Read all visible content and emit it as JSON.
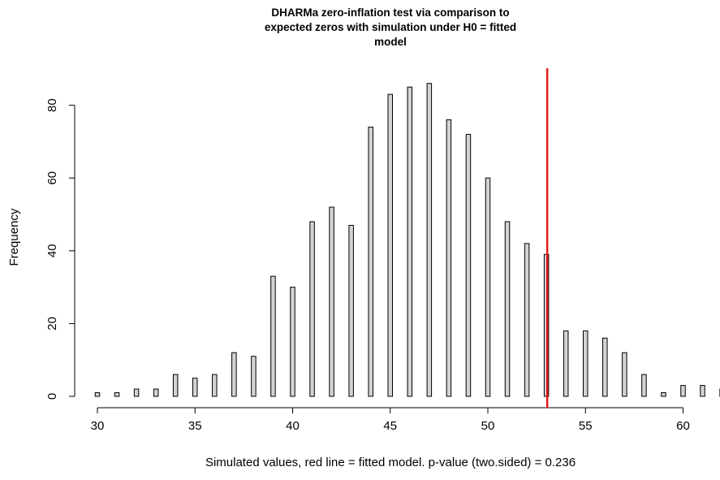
{
  "chart_data": {
    "type": "bar",
    "title_lines": [
      "DHARMa zero-inflation test via comparison to",
      "expected zeros with simulation under H0 = fitted",
      "model"
    ],
    "xlabel": "Simulated values, red line = fitted model. p-value (two.sided) = 0.236",
    "ylabel": "Frequency",
    "xlim": [
      30,
      62
    ],
    "ylim": [
      0,
      90
    ],
    "x_ticks": [
      "30",
      "35",
      "40",
      "45",
      "50",
      "55",
      "60"
    ],
    "y_ticks": [
      "0",
      "20",
      "40",
      "60",
      "80"
    ],
    "x": [
      30,
      31,
      32,
      33,
      34,
      35,
      36,
      37,
      38,
      39,
      40,
      41,
      42,
      43,
      44,
      45,
      46,
      47,
      48,
      49,
      50,
      51,
      52,
      53,
      54,
      55,
      56,
      57,
      58,
      59,
      60,
      61,
      62
    ],
    "values": [
      1,
      1,
      2,
      2,
      6,
      5,
      6,
      12,
      11,
      33,
      30,
      48,
      52,
      47,
      74,
      83,
      85,
      86,
      76,
      72,
      60,
      48,
      42,
      39,
      18,
      18,
      16,
      12,
      6,
      1,
      3,
      3,
      2
    ],
    "observed_value": 53,
    "bar_fill": "#d3d3d3",
    "bar_stroke": "#000000",
    "observed_line_color": "#e31a1c",
    "grid": false,
    "legend": "none"
  }
}
